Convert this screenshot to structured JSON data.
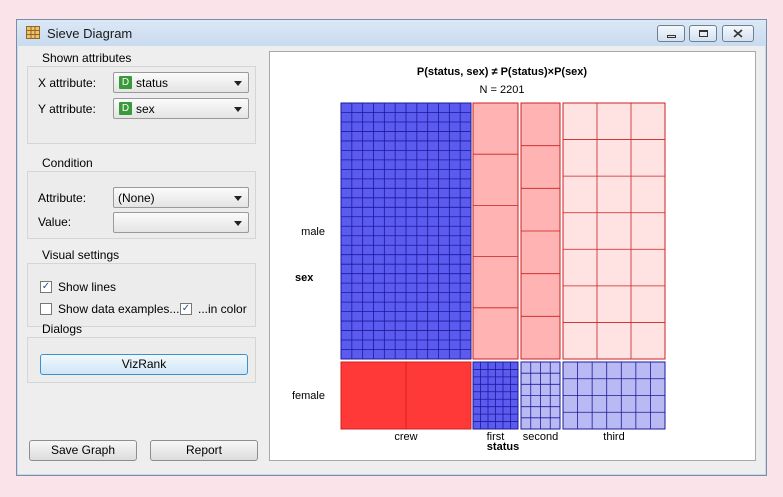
{
  "window": {
    "title": "Sieve Diagram",
    "icon": "sieve-diagram-icon"
  },
  "shown_attributes": {
    "title": "Shown attributes",
    "x_label": "X attribute:",
    "x_value": "status",
    "y_label": "Y attribute:",
    "y_value": "sex",
    "type_badge": "D"
  },
  "condition": {
    "title": "Condition",
    "attribute_label": "Attribute:",
    "attribute_value": "(None)",
    "value_label": "Value:",
    "value_value": ""
  },
  "visual_settings": {
    "title": "Visual settings",
    "show_lines_label": "Show lines",
    "show_lines_checked": true,
    "show_examples_label": "Show data examples...",
    "show_examples_checked": false,
    "in_color_label": "...in color",
    "in_color_checked": true
  },
  "dialogs": {
    "title": "Dialogs",
    "vizrank_label": "VizRank"
  },
  "bottom_buttons": {
    "save_graph": "Save Graph",
    "report": "Report"
  },
  "chart_data": {
    "type": "sieve",
    "title": "P(status, sex) ≠ P(status)×P(sex)",
    "subtitle": "N = 2201",
    "xlabel": "status",
    "ylabel": "sex",
    "x_categories": [
      "crew",
      "first",
      "second",
      "third"
    ],
    "y_categories": [
      "male",
      "female"
    ],
    "colors": {
      "positive_strong": "#5b5bf0",
      "positive_light": "#b9b9f4",
      "negative_strong": "#ff3838",
      "negative_mid": "#ffb3b3",
      "negative_light": "#ffe3e3"
    }
  }
}
